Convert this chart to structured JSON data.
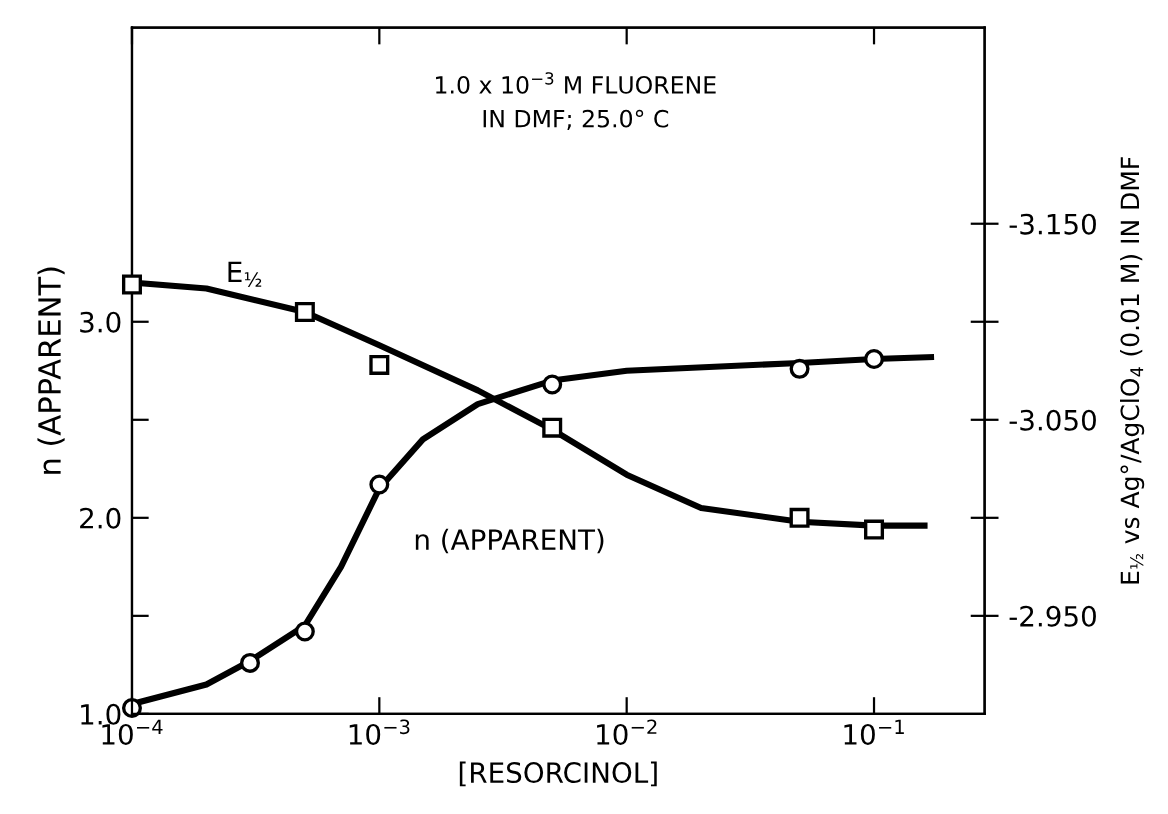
{
  "chart_data": {
    "type": "scatter",
    "xlabel": "[RESORCINOL]",
    "ylabel": "n (APPARENT)",
    "y2label": "E$_{½}$ vs Ag°/AgClO$_{4}$ (0.01 M) IN DMF",
    "log": "x",
    "grid": false,
    "legend": false,
    "xlim": [
      0.0001,
      0.28
    ],
    "xticks": [
      {
        "value": 0.0001,
        "label": "10$^{−4}$"
      },
      {
        "value": 0.001,
        "label": "10$^{−3}$"
      },
      {
        "value": 0.01,
        "label": "10$^{−2}$"
      },
      {
        "value": 0.1,
        "label": "10$^{−1}$"
      }
    ],
    "ylim": [
      1.0,
      4.5
    ],
    "yticks": [
      {
        "value": 1.0,
        "label": "1.0"
      },
      {
        "value": 1.5,
        "label": null
      },
      {
        "value": 2.0,
        "label": "2.0"
      },
      {
        "value": 2.5,
        "label": null
      },
      {
        "value": 3.0,
        "label": "3.0"
      }
    ],
    "y2lim": [
      -2.9,
      -3.25
    ],
    "y2ticks": [
      {
        "value": -2.95,
        "label": "-2.950"
      },
      {
        "value": -3.0,
        "label": null
      },
      {
        "value": -3.05,
        "label": "-3.050"
      },
      {
        "value": -3.1,
        "label": null
      },
      {
        "value": -3.15,
        "label": "-3.150"
      }
    ],
    "series": [
      {
        "marker": "circle",
        "color": "#000000",
        "x": [
          0.0001,
          0.0003,
          0.0005,
          0.001,
          0.005,
          0.05,
          0.1
        ],
        "values": [
          1.03,
          1.26,
          1.42,
          2.17,
          2.68,
          2.76,
          2.81
        ]
      },
      {
        "type": "line",
        "marker": "none",
        "color": "#000000",
        "x": [
          0.0001,
          0.0002,
          0.0003,
          0.0005,
          0.0007,
          0.001,
          0.0015,
          0.0025,
          0.005,
          0.01,
          0.05,
          0.1,
          0.17
        ],
        "values": [
          1.05,
          1.15,
          1.27,
          1.45,
          1.75,
          2.15,
          2.4,
          2.58,
          2.7,
          2.75,
          2.79,
          2.81,
          2.82
        ]
      },
      {
        "marker": "square",
        "color": "#000000",
        "axis": "y2",
        "x": [
          0.0001,
          0.0005,
          0.001,
          0.005,
          0.05,
          0.1
        ],
        "values": [
          -3.119,
          -3.105,
          -3.078,
          -3.046,
          -3.0,
          -2.994
        ]
      },
      {
        "type": "line",
        "marker": "none",
        "color": "#000000",
        "axis": "y2",
        "x": [
          0.0001,
          0.0002,
          0.0005,
          0.001,
          0.0025,
          0.005,
          0.01,
          0.02,
          0.05,
          0.1,
          0.16
        ],
        "values": [
          -3.12,
          -3.117,
          -3.105,
          -3.088,
          -3.065,
          -3.045,
          -3.022,
          -3.005,
          -2.998,
          -2.996,
          -2.996
        ]
      }
    ],
    "annotations": [
      {
        "text": "1.0 x 10$^{−3}$ M FLUORENE\nIN DMF; 25.0° C"
      },
      "E$_{½}$",
      "n (APPARENT)"
    ]
  }
}
